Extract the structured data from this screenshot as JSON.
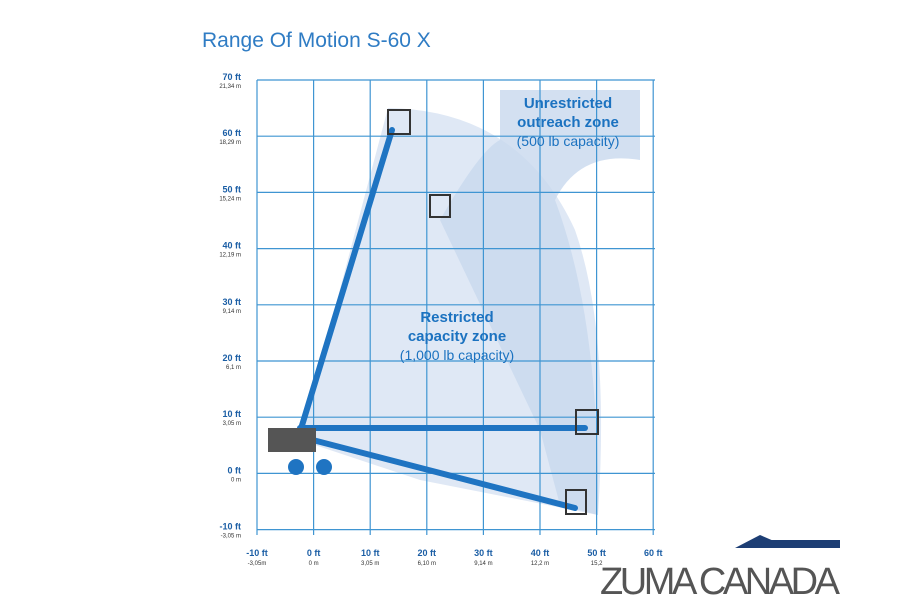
{
  "title": "Range Of Motion S-60 X",
  "y_axis": [
    {
      "ft": "70 ft",
      "m": "21,34 m"
    },
    {
      "ft": "60 ft",
      "m": "18,29 m"
    },
    {
      "ft": "50 ft",
      "m": "15,24 m"
    },
    {
      "ft": "40 ft",
      "m": "12,19 m"
    },
    {
      "ft": "30 ft",
      "m": "9,14 m"
    },
    {
      "ft": "20 ft",
      "m": "6,1 m"
    },
    {
      "ft": "10 ft",
      "m": "3,05 m"
    },
    {
      "ft": "0 ft",
      "m": "0 m"
    },
    {
      "ft": "-10 ft",
      "m": "-3,05 m"
    }
  ],
  "x_axis": [
    {
      "ft": "-10 ft",
      "m": "-3,05m"
    },
    {
      "ft": "0 ft",
      "m": "0 m"
    },
    {
      "ft": "10 ft",
      "m": "3,05 m"
    },
    {
      "ft": "20 ft",
      "m": "6,10 m"
    },
    {
      "ft": "30 ft",
      "m": "9,14 m"
    },
    {
      "ft": "40 ft",
      "m": "12,2 m"
    },
    {
      "ft": "50 ft",
      "m": "15,2"
    },
    {
      "ft": "60 ft"
    }
  ],
  "zones": {
    "unrestricted": [
      "Unrestricted",
      "outreach zone",
      "(500 lb capacity)"
    ],
    "restricted": [
      "Restricted",
      "capacity zone",
      "(1,000 lb capacity)"
    ]
  },
  "watermark": "ZUMA CANADA"
}
